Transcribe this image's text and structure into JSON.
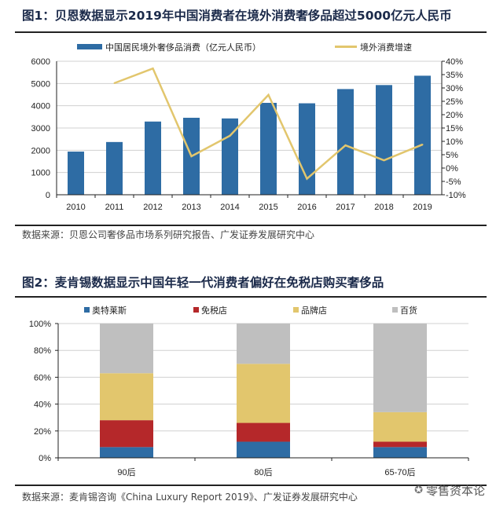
{
  "chart_data": [
    {
      "type": "bar+line",
      "title": "图1：贝恩数据显示2019年中国消费者在境外消费奢侈品超过5000亿元人民币",
      "categories": [
        "2010",
        "2011",
        "2012",
        "2013",
        "2014",
        "2015",
        "2016",
        "2017",
        "2018",
        "2019"
      ],
      "series": [
        {
          "name": "中国居民境外奢侈品消费（亿元人民币）",
          "type": "bar",
          "axis": "left",
          "color": "#2e6ca4",
          "values": [
            1940,
            2370,
            3290,
            3460,
            3430,
            4130,
            4110,
            4750,
            4930,
            5350
          ]
        },
        {
          "name": "境外消费增速",
          "type": "line",
          "axis": "right",
          "color": "#e2c66d",
          "values": [
            null,
            31.8,
            37.3,
            4.4,
            12.1,
            27.4,
            -4.0,
            8.5,
            2.9,
            8.8
          ]
        }
      ],
      "ylim_left": [
        0,
        6000
      ],
      "yticks_left": [
        "0",
        "1000",
        "2000",
        "3000",
        "4000",
        "5000",
        "6000"
      ],
      "ylim_right": [
        -10,
        40
      ],
      "yticks_right": [
        "-10%",
        "-5%",
        "0%",
        "5%",
        "10%",
        "15%",
        "20%",
        "25%",
        "30%",
        "35%",
        "40%"
      ],
      "grid": true,
      "legend": "top",
      "source": "数据来源：贝恩公司奢侈品市场系列研究报告、广发证券发展研究中心"
    },
    {
      "type": "stacked-bar",
      "title": "图2：麦肯锡数据显示中国年轻一代消费者偏好在免税店购买奢侈品",
      "categories": [
        "90后",
        "80后",
        "65-70后"
      ],
      "series": [
        {
          "name": "奥特莱斯",
          "color": "#2e6ca4",
          "values": [
            8,
            12,
            8
          ]
        },
        {
          "name": "免税店",
          "color": "#b5282a",
          "values": [
            20,
            14,
            4
          ]
        },
        {
          "name": "品牌店",
          "color": "#e2c66d",
          "values": [
            35,
            44,
            22
          ]
        },
        {
          "name": "百货",
          "color": "#bfbfbf",
          "values": [
            37,
            30,
            66
          ]
        }
      ],
      "ylim": [
        0,
        100
      ],
      "yticks": [
        "0%",
        "20%",
        "40%",
        "60%",
        "80%",
        "100%"
      ],
      "grid": true,
      "legend": "top",
      "source": "数据来源：麦肯锡咨询《China Luxury Report 2019》、广发证券发展研究中心"
    }
  ],
  "watermark": "零售资本论"
}
